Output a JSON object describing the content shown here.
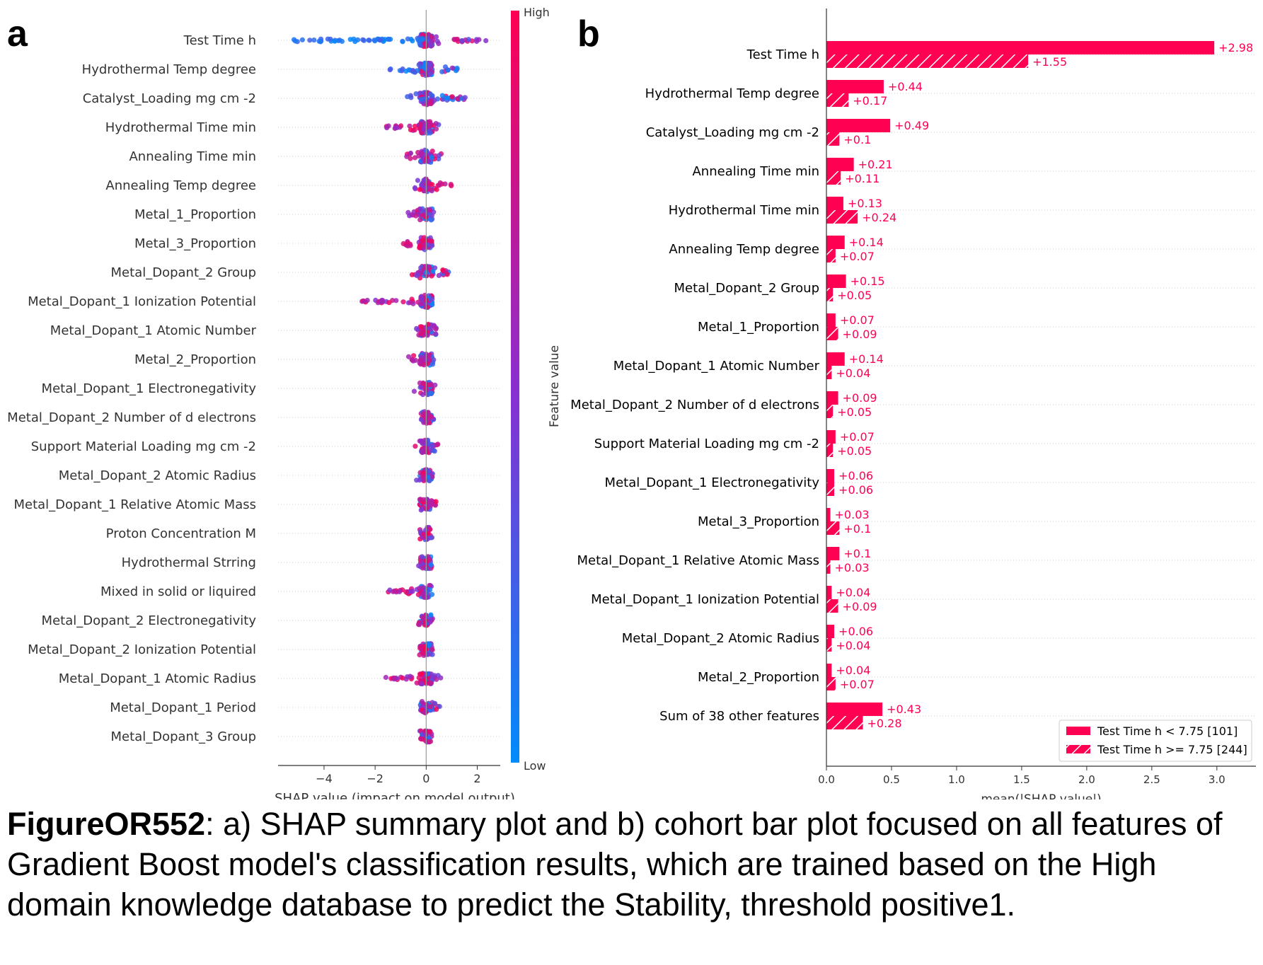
{
  "panel_labels": {
    "a": "a",
    "b": "b"
  },
  "caption": {
    "figure_id": "FigureOR552",
    "text": ": a) SHAP summary plot and b) cohort bar plot focused on all features of Gradient Boost model's classification results, which are trained based on the High domain knowledge database to predict the Stability, threshold positive1."
  },
  "colors": {
    "high": "#ff0052",
    "low": "#008bfb",
    "mid": "#c000a0",
    "axis": "#333333"
  },
  "chart_data": [
    {
      "type": "scatter",
      "subtype": "shap-beeswarm",
      "xlabel": "SHAP value (impact on model output)",
      "xticks": [
        -4,
        -2,
        0,
        2
      ],
      "xlim": [
        -5.8,
        2.9
      ],
      "colorbar": {
        "label": "Feature value",
        "high": "High",
        "low": "Low"
      },
      "features": [
        {
          "name": "Test Time h",
          "neg_spread": 5.3,
          "pos_spread": 2.4
        },
        {
          "name": "Hydrothermal Temp degree",
          "neg_spread": 1.6,
          "pos_spread": 1.3
        },
        {
          "name": "Catalyst_Loading mg cm -2",
          "neg_spread": 0.9,
          "pos_spread": 1.7
        },
        {
          "name": "Hydrothermal Time min",
          "neg_spread": 1.6,
          "pos_spread": 0.5
        },
        {
          "name": "Annealing Time min",
          "neg_spread": 0.8,
          "pos_spread": 0.6
        },
        {
          "name": "Annealing Temp degree",
          "neg_spread": 0.5,
          "pos_spread": 1.0
        },
        {
          "name": "Metal_1_Proportion",
          "neg_spread": 0.8,
          "pos_spread": 0.3
        },
        {
          "name": "Metal_3_Proportion",
          "neg_spread": 0.9,
          "pos_spread": 0.1
        },
        {
          "name": "Metal_Dopant_2 Group",
          "neg_spread": 0.6,
          "pos_spread": 0.9
        },
        {
          "name": "Metal_Dopant_1 Ionization Potential",
          "neg_spread": 2.6,
          "pos_spread": 0.3
        },
        {
          "name": "Metal_Dopant_1 Atomic Number",
          "neg_spread": 0.4,
          "pos_spread": 0.5
        },
        {
          "name": "Metal_2_Proportion",
          "neg_spread": 0.7,
          "pos_spread": 0.3
        },
        {
          "name": "Metal_Dopant_1 Electronegativity",
          "neg_spread": 0.5,
          "pos_spread": 0.4
        },
        {
          "name": "Metal_Dopant_2 Number of d electrons",
          "neg_spread": 0.2,
          "pos_spread": 0.4
        },
        {
          "name": "Support Material Loading mg cm -2",
          "neg_spread": 0.5,
          "pos_spread": 0.5
        },
        {
          "name": "Metal_Dopant_2 Atomic Radius",
          "neg_spread": 0.4,
          "pos_spread": 0.4
        },
        {
          "name": "Metal_Dopant_1 Relative Atomic Mass",
          "neg_spread": 0.3,
          "pos_spread": 0.4
        },
        {
          "name": "Proton Concentration M",
          "neg_spread": 0.2,
          "pos_spread": 0.2
        },
        {
          "name": "Hydrothermal Strring",
          "neg_spread": 0.3,
          "pos_spread": 0.2
        },
        {
          "name": "Mixed in solid or liquired",
          "neg_spread": 1.6,
          "pos_spread": 0.1
        },
        {
          "name": "Metal_Dopant_2 Electronegativity",
          "neg_spread": 0.3,
          "pos_spread": 0.2
        },
        {
          "name": "Metal_Dopant_2 Ionization Potential",
          "neg_spread": 0.3,
          "pos_spread": 0.4
        },
        {
          "name": "Metal_Dopant_1 Atomic Radius",
          "neg_spread": 1.6,
          "pos_spread": 0.6
        },
        {
          "name": "Metal_Dopant_1 Period",
          "neg_spread": 0.2,
          "pos_spread": 0.6
        },
        {
          "name": "Metal_Dopant_3 Group",
          "neg_spread": 0.1,
          "pos_spread": 0.2
        }
      ]
    },
    {
      "type": "bar",
      "subtype": "horizontal-grouped-cohort",
      "xlabel": "mean(|SHAP value|)",
      "xlim": [
        0,
        3.3
      ],
      "xticks": [
        0.0,
        0.5,
        1.0,
        1.5,
        2.0,
        2.5,
        3.0
      ],
      "xtick_labels": [
        "0.0",
        "0.5",
        "1.0",
        "1.5",
        "2.0",
        "2.5",
        "3.0"
      ],
      "legend_position": "bottom-right",
      "series": [
        {
          "name": "Test Time h < 7.75 [101]",
          "style": "solid"
        },
        {
          "name": "Test Time h >= 7.75 [244]",
          "style": "hatched"
        }
      ],
      "categories": [
        "Test Time h",
        "Hydrothermal Temp degree",
        "Catalyst_Loading mg cm -2",
        "Annealing Time min",
        "Hydrothermal Time min",
        "Annealing Temp degree",
        "Metal_Dopant_2 Group",
        "Metal_1_Proportion",
        "Metal_Dopant_1 Atomic Number",
        "Metal_Dopant_2 Number of d electrons",
        "Support Material Loading mg cm -2",
        "Metal_Dopant_1 Electronegativity",
        "Metal_3_Proportion",
        "Metal_Dopant_1 Relative Atomic Mass",
        "Metal_Dopant_1 Ionization Potential",
        "Metal_Dopant_2 Atomic Radius",
        "Metal_2_Proportion",
        "Sum of 38 other features"
      ],
      "values_cohort1": [
        2.98,
        0.44,
        0.49,
        0.21,
        0.13,
        0.14,
        0.15,
        0.07,
        0.14,
        0.09,
        0.07,
        0.06,
        0.03,
        0.1,
        0.04,
        0.06,
        0.04,
        0.43
      ],
      "labels_cohort1": [
        "+2.98",
        "+0.44",
        "+0.49",
        "+0.21",
        "+0.13",
        "+0.14",
        "+0.15",
        "+0.07",
        "+0.14",
        "+0.09",
        "+0.07",
        "+0.06",
        "+0.03",
        "+0.1",
        "+0.04",
        "+0.06",
        "+0.04",
        "+0.43"
      ],
      "values_cohort2": [
        1.55,
        0.17,
        0.1,
        0.11,
        0.24,
        0.07,
        0.05,
        0.09,
        0.04,
        0.05,
        0.05,
        0.06,
        0.1,
        0.03,
        0.09,
        0.04,
        0.07,
        0.28
      ],
      "labels_cohort2": [
        "+1.55",
        "+0.17",
        "+0.1",
        "+0.11",
        "+0.24",
        "+0.07",
        "+0.05",
        "+0.09",
        "+0.04",
        "+0.05",
        "+0.05",
        "+0.06",
        "+0.1",
        "+0.03",
        "+0.09",
        "+0.04",
        "+0.07",
        "+0.28"
      ]
    }
  ]
}
